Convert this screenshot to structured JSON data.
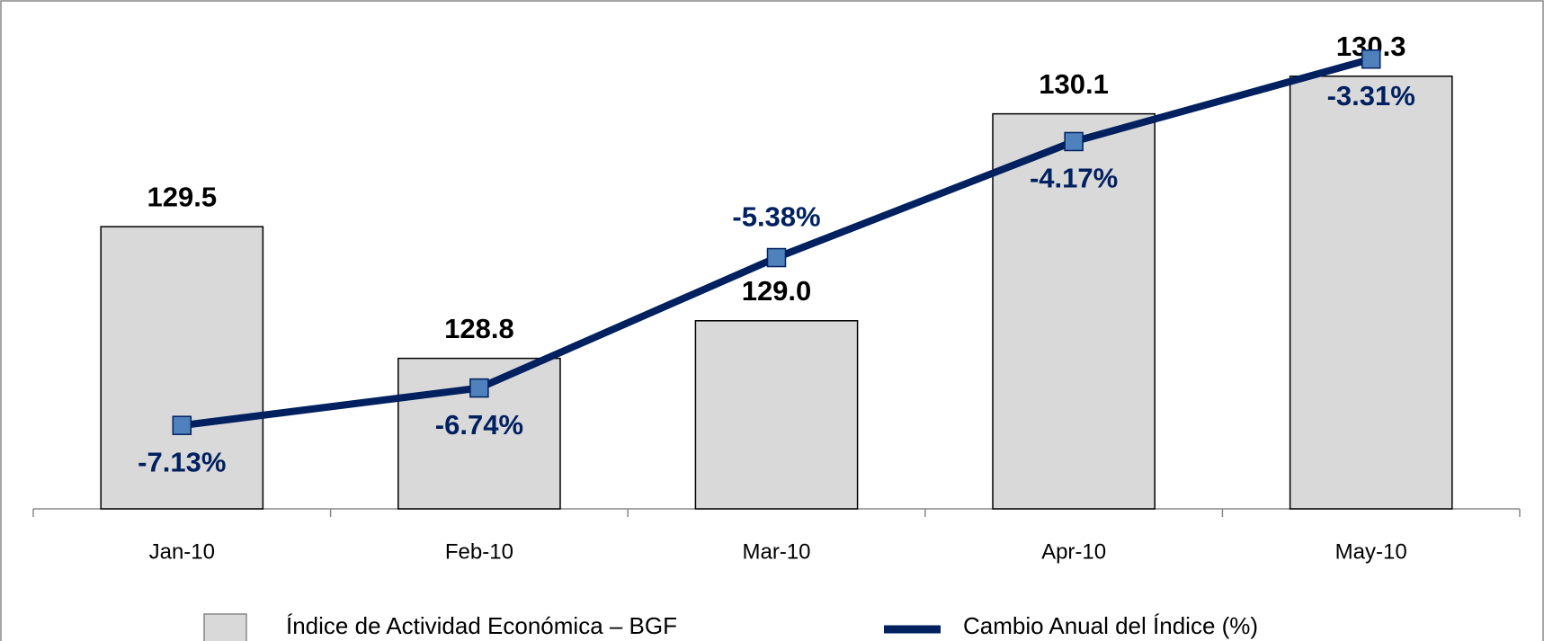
{
  "chart_data": {
    "type": "bar+line",
    "categories": [
      "Jan-10",
      "Feb-10",
      "Mar-10",
      "Apr-10",
      "May-10"
    ],
    "series": [
      {
        "name": "Índice de Actividad Económica – BGF",
        "type": "bar",
        "color": "#d9d9d9",
        "values": [
          129.5,
          128.8,
          129.0,
          130.1,
          130.3
        ],
        "value_labels": [
          "129.5",
          "128.8",
          "129.0",
          "130.1",
          "130.3"
        ]
      },
      {
        "name": "Cambio Anual del Índice (%)",
        "type": "line",
        "axis": "y2",
        "color": "#002060",
        "marker_color": "#4f81bd",
        "values": [
          -7.13,
          -6.74,
          -5.38,
          -4.17,
          -3.31
        ],
        "value_labels": [
          "-7.13%",
          "-6.74%",
          "-5.38%",
          "-4.17%",
          "-3.31%"
        ]
      }
    ],
    "ylim": [
      128,
      130.6
    ],
    "y2lim": [
      -8,
      -2.9
    ],
    "legend": "bottom"
  }
}
